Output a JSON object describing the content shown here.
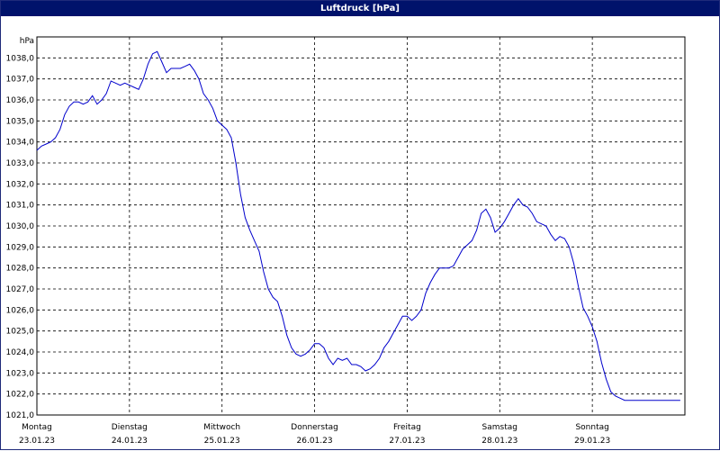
{
  "chart_data": {
    "type": "line",
    "title": "Luftdruck [hPa]",
    "ylabel": "hPa",
    "ylim": [
      1021,
      1039
    ],
    "y_ticks": [
      "1021,0",
      "1022,0",
      "1023,0",
      "1024,0",
      "1025,0",
      "1026,0",
      "1027,0",
      "1028,0",
      "1029,0",
      "1030,0",
      "1031,0",
      "1032,0",
      "1033,0",
      "1034,0",
      "1035,0",
      "1036,0",
      "1037,0",
      "1038,0"
    ],
    "x_ticks": [
      {
        "day": "Montag",
        "date": "23.01.23"
      },
      {
        "day": "Dienstag",
        "date": "24.01.23"
      },
      {
        "day": "Mittwoch",
        "date": "25.01.23"
      },
      {
        "day": "Donnerstag",
        "date": "26.01.23"
      },
      {
        "day": "Freitag",
        "date": "27.01.23"
      },
      {
        "day": "Samstag",
        "date": "28.01.23"
      },
      {
        "day": "Sonntag",
        "date": "29.01.23"
      }
    ],
    "grid": true,
    "line_color": "#0000cc",
    "series": [
      {
        "x": [
          0,
          0.05,
          0.1,
          0.15,
          0.2,
          0.25,
          0.3,
          0.35,
          0.4,
          0.45,
          0.5,
          0.55,
          0.6,
          0.65,
          0.7,
          0.75,
          0.8,
          0.85,
          0.9,
          0.95,
          1.0,
          1.05,
          1.1,
          1.15,
          1.2,
          1.25,
          1.3,
          1.35,
          1.4,
          1.45,
          1.5,
          1.55,
          1.6,
          1.65,
          1.7,
          1.75,
          1.8,
          1.85,
          1.9,
          1.95,
          2.0,
          2.05,
          2.1,
          2.15,
          2.2,
          2.25,
          2.3,
          2.35,
          2.4,
          2.45,
          2.5,
          2.55,
          2.6,
          2.65,
          2.7,
          2.75,
          2.8,
          2.85,
          2.9,
          2.95,
          3.0,
          3.05,
          3.1,
          3.15,
          3.2,
          3.25,
          3.3,
          3.35,
          3.4,
          3.45,
          3.5,
          3.55,
          3.6,
          3.65,
          3.7,
          3.75,
          3.8,
          3.85,
          3.9,
          3.95,
          4.0,
          4.05,
          4.1,
          4.15,
          4.2,
          4.25,
          4.3,
          4.35,
          4.4,
          4.45,
          4.5,
          4.55,
          4.6,
          4.65,
          4.7,
          4.75,
          4.8,
          4.85,
          4.9,
          4.95,
          5.0,
          5.05,
          5.1,
          5.15,
          5.2,
          5.25,
          5.3,
          5.35,
          5.4,
          5.45,
          5.5,
          5.55,
          5.6,
          5.65,
          5.7,
          5.75,
          5.8,
          5.85,
          5.9,
          5.95,
          6.0,
          6.05,
          6.1,
          6.15,
          6.2,
          6.25,
          6.3,
          6.35,
          6.4,
          6.45,
          6.5,
          6.55,
          6.6,
          6.65,
          6.7,
          6.75,
          6.8,
          6.85,
          6.9,
          6.95
        ],
        "y": [
          1033.6,
          1033.8,
          1033.9,
          1034.0,
          1034.2,
          1034.6,
          1035.3,
          1035.7,
          1035.9,
          1035.9,
          1035.8,
          1035.9,
          1036.2,
          1035.8,
          1036.0,
          1036.3,
          1036.9,
          1036.8,
          1036.7,
          1036.8,
          1036.7,
          1036.6,
          1036.5,
          1037.0,
          1037.7,
          1038.2,
          1038.3,
          1037.8,
          1037.3,
          1037.5,
          1037.5,
          1037.5,
          1037.6,
          1037.7,
          1037.4,
          1037.0,
          1036.3,
          1036.0,
          1035.6,
          1035.0,
          1034.8,
          1034.6,
          1034.2,
          1033.0,
          1031.5,
          1030.4,
          1029.8,
          1029.3,
          1028.8,
          1027.8,
          1027.0,
          1026.6,
          1026.4,
          1025.7,
          1024.8,
          1024.2,
          1023.9,
          1023.8,
          1023.9,
          1024.1,
          1024.4,
          1024.4,
          1024.2,
          1023.7,
          1023.4,
          1023.7,
          1023.6,
          1023.7,
          1023.4,
          1023.4,
          1023.3,
          1023.1,
          1023.2,
          1023.4,
          1023.7,
          1024.2,
          1024.5,
          1024.9,
          1025.3,
          1025.7,
          1025.7,
          1025.5,
          1025.7,
          1026.0,
          1026.8,
          1027.3,
          1027.7,
          1028.0,
          1028.0,
          1028.0,
          1028.1,
          1028.5,
          1028.9,
          1029.1,
          1029.3,
          1029.8,
          1030.6,
          1030.8,
          1030.4,
          1029.7,
          1029.9,
          1030.2,
          1030.6,
          1031.0,
          1031.3,
          1031.0,
          1030.9,
          1030.6,
          1030.2,
          1030.1,
          1030.0,
          1029.6,
          1029.3,
          1029.5,
          1029.4,
          1029.0,
          1028.2,
          1027.1,
          1026.1,
          1025.7,
          1025.2,
          1024.5,
          1023.5,
          1022.7,
          1022.1,
          1021.9,
          1021.8,
          1021.7,
          1021.7,
          1021.7,
          1021.7,
          1021.7,
          1021.7,
          1021.7,
          1021.7,
          1021.7,
          1021.7,
          1021.7,
          1021.7,
          1021.7
        ]
      }
    ],
    "x_range": [
      0,
      6.95
    ]
  }
}
